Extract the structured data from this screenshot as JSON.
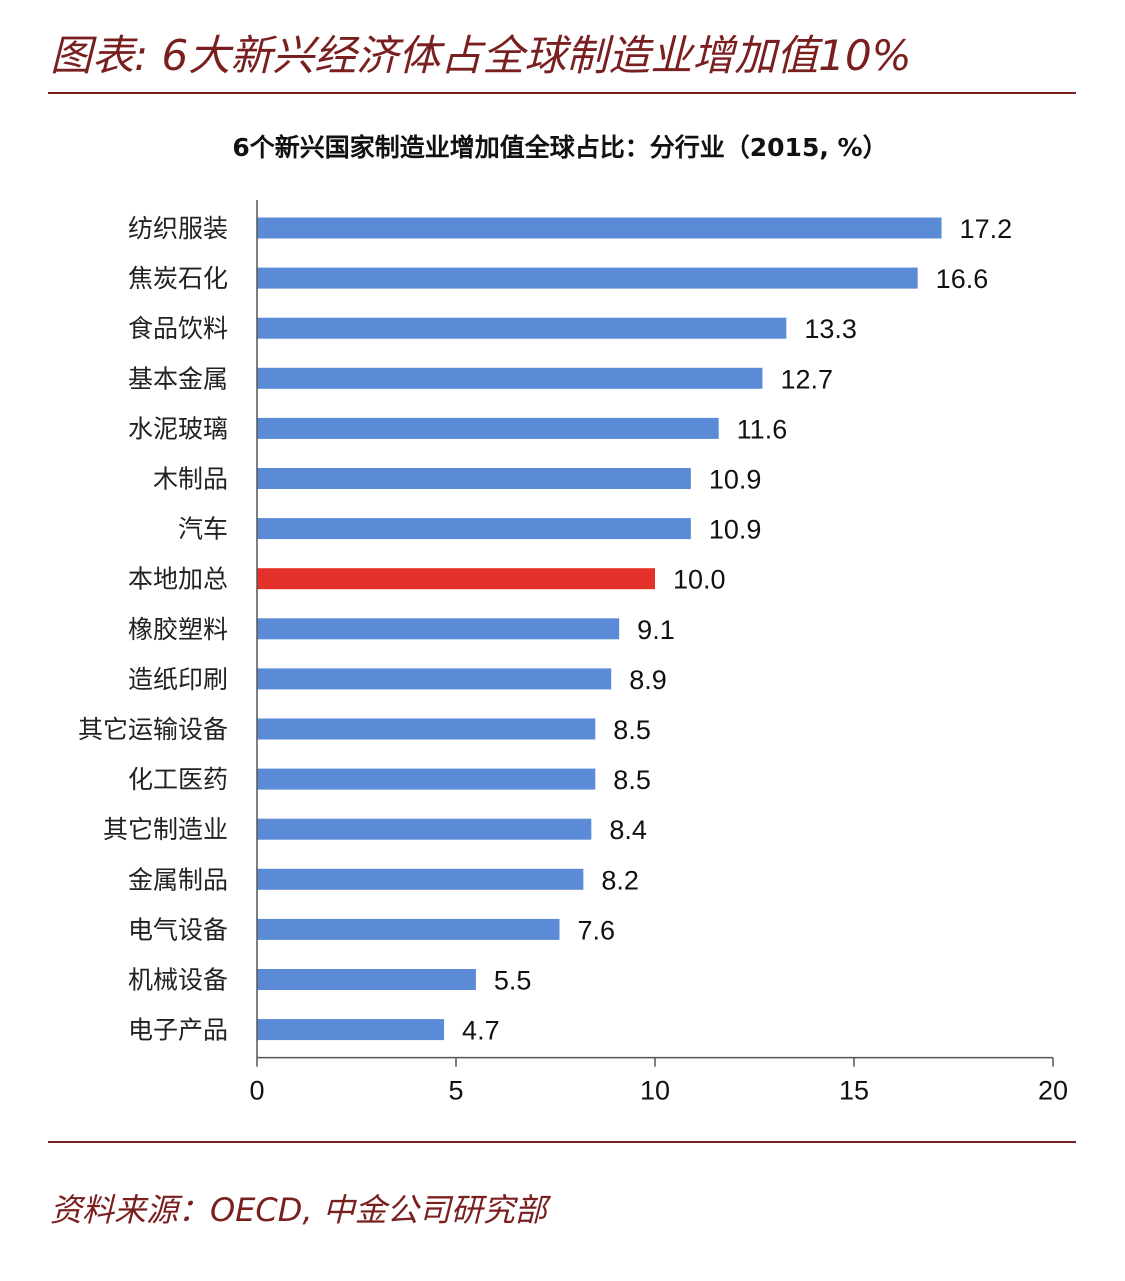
{
  "header": {
    "title": "图表: 6大新兴经济体占全球制造业增加值10%"
  },
  "footer": {
    "source": "资料来源：OECD, 中金公司研究部"
  },
  "colors": {
    "accent": "#7a1f1f",
    "bar": "#5b8bd6",
    "highlight": "#e4312a",
    "axis": "#555555"
  },
  "chart_data": {
    "type": "bar",
    "orientation": "horizontal",
    "title": "6个新兴国家制造业增加值全球占比：分行业（2015, %）",
    "categories": [
      "纺织服装",
      "焦炭石化",
      "食品饮料",
      "基本金属",
      "水泥玻璃",
      "木制品",
      "汽车",
      "本地加总",
      "橡胶塑料",
      "造纸印刷",
      "其它运输设备",
      "化工医药",
      "其它制造业",
      "金属制品",
      "电气设备",
      "机械设备",
      "电子产品"
    ],
    "values": [
      17.2,
      16.6,
      13.3,
      12.7,
      11.6,
      10.9,
      10.9,
      10.0,
      9.1,
      8.9,
      8.5,
      8.5,
      8.4,
      8.2,
      7.6,
      5.5,
      4.7
    ],
    "value_labels": [
      "17.2",
      "16.6",
      "13.3",
      "12.7",
      "11.6",
      "10.9",
      "10.9",
      "10.0",
      "9.1",
      "8.9",
      "8.5",
      "8.5",
      "8.4",
      "8.2",
      "7.6",
      "5.5",
      "4.7"
    ],
    "highlight_category": "本地加总",
    "xlim": [
      0,
      20
    ],
    "xticks": [
      0,
      5,
      10,
      15,
      20
    ],
    "grid": false,
    "legend": "none"
  }
}
